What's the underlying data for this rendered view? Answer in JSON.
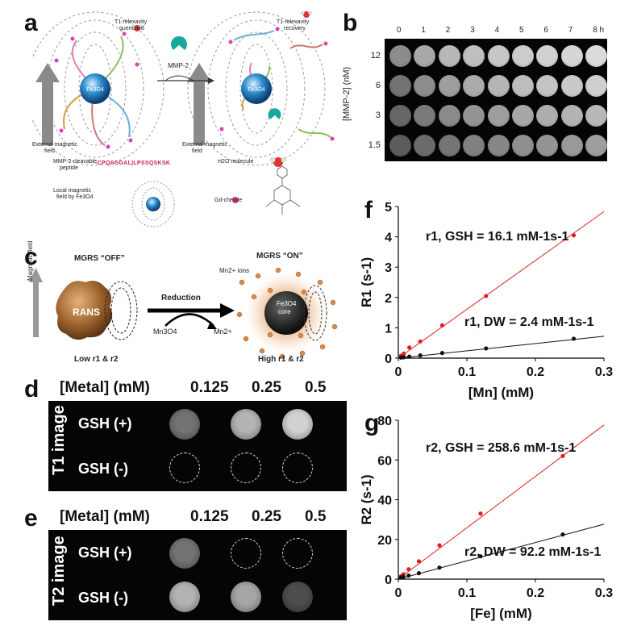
{
  "panels": {
    "a": "a",
    "b": "b",
    "c": "c",
    "d": "d",
    "e": "e",
    "f": "f",
    "g": "g"
  },
  "panel_a": {
    "t1_quenched_line1": "T1-relexavity",
    "t1_quenched_line2": "quenched",
    "t1_recovery_line1": "T1-relexavity",
    "t1_recovery_line2": "recovery",
    "enzyme": "MMP-2",
    "core_left": "Fe3O4",
    "core_right": "Fe3O4",
    "field_left_line1": "External magnetic",
    "field_left_line2": "field",
    "field_right_line1": "External magnetic",
    "field_right_line2": "field",
    "legend_peptide_line1": "MMP-2 cleavable",
    "legend_peptide_line2": "peptide",
    "peptide_sequence": "-CPQSGGAL|LPSSQSKSK",
    "legend_local_line1": "Local magnetic",
    "legend_local_line2": "field by Fe3O4",
    "legend_water": "H2O molecule",
    "legend_gd": "Gd-chelate"
  },
  "panel_b": {
    "time_labels": [
      "0",
      "1",
      "2",
      "3",
      "4",
      "5",
      "6",
      "7",
      "8 h"
    ],
    "row_labels": [
      "12",
      "6",
      "3",
      "1.5"
    ],
    "ylabel": "[MMP-2] (nM)",
    "intensity": [
      [
        0.55,
        0.66,
        0.72,
        0.75,
        0.78,
        0.8,
        0.82,
        0.84,
        0.86
      ],
      [
        0.45,
        0.55,
        0.62,
        0.67,
        0.71,
        0.74,
        0.77,
        0.79,
        0.81
      ],
      [
        0.4,
        0.48,
        0.54,
        0.58,
        0.62,
        0.65,
        0.68,
        0.7,
        0.72
      ],
      [
        0.36,
        0.42,
        0.46,
        0.5,
        0.53,
        0.56,
        0.58,
        0.6,
        0.62
      ]
    ]
  },
  "panel_c": {
    "off_label": "MGRS “OFF”",
    "on_label": "MGRS “ON”",
    "mn_ions": "Mn2+ ions",
    "magnetic_field": "Magnetic field",
    "rans": "RANS",
    "reduction": "Reduction",
    "reactant": "Mn3O4",
    "product": "Mn2+",
    "core_line1": "Fe3O4",
    "core_line2": "core",
    "low": "Low r1 & r2",
    "high": "High r1 & r2"
  },
  "panel_d": {
    "header": "[Metal] (mM)",
    "concentrations": [
      "0.125",
      "0.25",
      "0.5"
    ],
    "side_label": "T1 image",
    "row_plus": "GSH (+)",
    "row_minus": "GSH (-)",
    "plus_intensity": [
      0.45,
      0.7,
      0.82
    ],
    "minus_intensity": [
      0.0,
      0.0,
      0.0
    ]
  },
  "panel_e": {
    "header": "[Metal] (mM)",
    "concentrations": [
      "0.125",
      "0.25",
      "0.5"
    ],
    "side_label": "T2 image",
    "row_plus": "GSH (+)",
    "row_minus": "GSH (-)",
    "plus_intensity": [
      0.45,
      0.0,
      0.0
    ],
    "minus_intensity": [
      0.7,
      0.65,
      0.3
    ]
  },
  "chart_data": [
    {
      "type": "scatter",
      "panel": "f",
      "xlabel": "[Mn] (mM)",
      "ylabel": "R1 (s-1)",
      "xlim": [
        0,
        0.3
      ],
      "ylim": [
        0,
        5
      ],
      "xticks": [
        "0",
        "0.1",
        "0.2",
        "0.3"
      ],
      "yticks": [
        "0",
        "1",
        "2",
        "3",
        "4",
        "5"
      ],
      "series": [
        {
          "name": "r1, GSH = 16.1 mM-1s-1",
          "color": "#e02020",
          "x": [
            0.004,
            0.008,
            0.016,
            0.032,
            0.064,
            0.128,
            0.256
          ],
          "y": [
            0.08,
            0.15,
            0.35,
            0.55,
            1.08,
            2.05,
            4.05
          ],
          "fit_slope": 16.1
        },
        {
          "name": "r1, DW = 2.4 mM-1s-1",
          "color": "#111111",
          "x": [
            0.004,
            0.008,
            0.016,
            0.032,
            0.064,
            0.128,
            0.256
          ],
          "y": [
            0.02,
            0.03,
            0.05,
            0.09,
            0.17,
            0.32,
            0.64
          ],
          "fit_slope": 2.4
        }
      ],
      "annotations": [
        "r1, GSH = 16.1 mM-1s-1",
        "r1, DW = 2.4 mM-1s-1"
      ]
    },
    {
      "type": "scatter",
      "panel": "g",
      "xlabel": "[Fe] (mM)",
      "ylabel": "R2 (s-1)",
      "xlim": [
        0,
        0.3
      ],
      "ylim": [
        0,
        80
      ],
      "xticks": [
        "0",
        "0.1",
        "0.2",
        "0.3"
      ],
      "yticks": [
        "0",
        "20",
        "40",
        "60",
        "80"
      ],
      "series": [
        {
          "name": "r2, GSH = 258.6 mM-1s-1",
          "color": "#e02020",
          "x": [
            0.0038,
            0.0075,
            0.015,
            0.03,
            0.06,
            0.12,
            0.24
          ],
          "y": [
            1.5,
            2.5,
            5.0,
            9.0,
            17.0,
            33.0,
            62.0
          ],
          "fit_slope": 258.6
        },
        {
          "name": "r2, DW = 92.2 mM-1s-1",
          "color": "#111111",
          "x": [
            0.0038,
            0.0075,
            0.015,
            0.03,
            0.06,
            0.12,
            0.24
          ],
          "y": [
            0.8,
            1.2,
            1.8,
            3.0,
            5.8,
            11.5,
            22.5
          ],
          "fit_slope": 92.2
        }
      ],
      "annotations": [
        "r2, GSH = 258.6 mM-1s-1",
        "r2, DW = 92.2 mM-1s-1"
      ]
    }
  ]
}
